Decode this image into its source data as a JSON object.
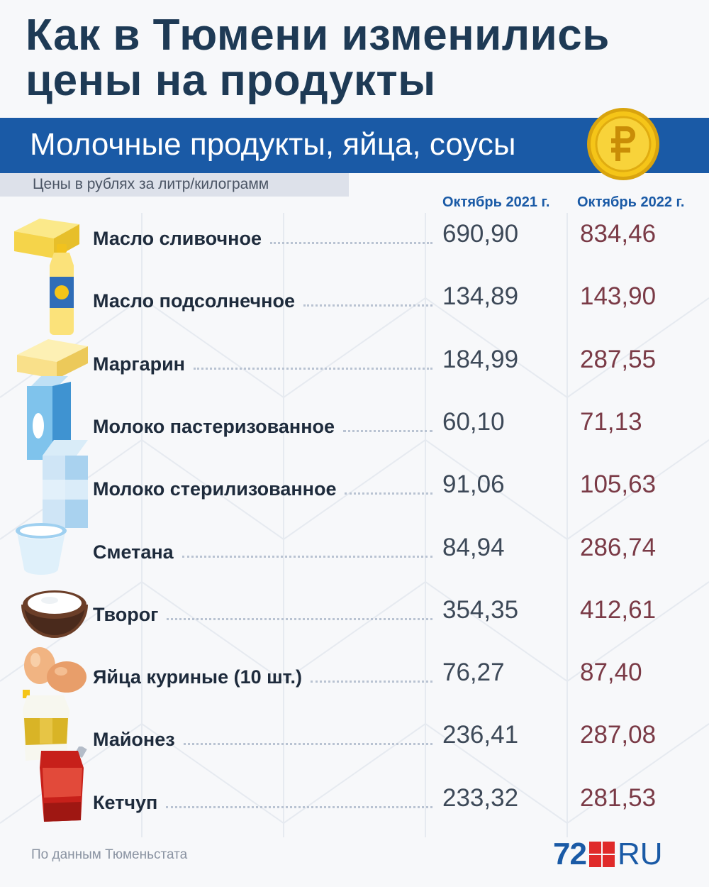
{
  "title": "Как в Тюмени изменились\nцены на продукты",
  "category": "Молочные продукты, яйца, соусы",
  "units_note": "Цены в рублях за литр/килограмм",
  "columns": [
    "Октябрь 2021 г.",
    "Октябрь 2022 г."
  ],
  "rows": [
    {
      "name": "Масло сливочное",
      "oct2021": "690,90",
      "oct2022": "834,46"
    },
    {
      "name": "Масло подсолнечное",
      "oct2021": "134,89",
      "oct2022": "143,90"
    },
    {
      "name": "Маргарин",
      "oct2021": "184,99",
      "oct2022": "287,55"
    },
    {
      "name": "Молоко пастеризованное",
      "oct2021": "60,10",
      "oct2022": "71,13"
    },
    {
      "name": "Молоко стерилизованное",
      "oct2021": "91,06",
      "oct2022": "105,63"
    },
    {
      "name": "Сметана",
      "oct2021": "84,94",
      "oct2022": "286,74"
    },
    {
      "name": "Творог",
      "oct2021": "354,35",
      "oct2022": "412,61"
    },
    {
      "name": "Яйца куриные (10 шт.)",
      "oct2021": "76,27",
      "oct2022": "87,40"
    },
    {
      "name": "Майонез",
      "oct2021": "236,41",
      "oct2022": "287,08"
    },
    {
      "name": "Кетчуп",
      "oct2021": "233,32",
      "oct2022": "281,53"
    }
  ],
  "source": "По данным Тюменьстата",
  "logo": {
    "number": "72",
    "suffix": "RU"
  },
  "colors": {
    "title": "#1e3a55",
    "band": "#1a5aa6",
    "value_2021": "#3d4958",
    "value_2022": "#7a3a46",
    "coin": "#f5c518"
  },
  "icons": [
    "butter-icon",
    "oil-bottle-icon",
    "margarine-icon",
    "milk-carton-icon",
    "milk-carton-icon",
    "sour-cream-cup-icon",
    "cottage-cheese-bowl-icon",
    "eggs-icon",
    "mayonnaise-pack-icon",
    "ketchup-pack-icon",
    "ruble-coin-icon"
  ]
}
